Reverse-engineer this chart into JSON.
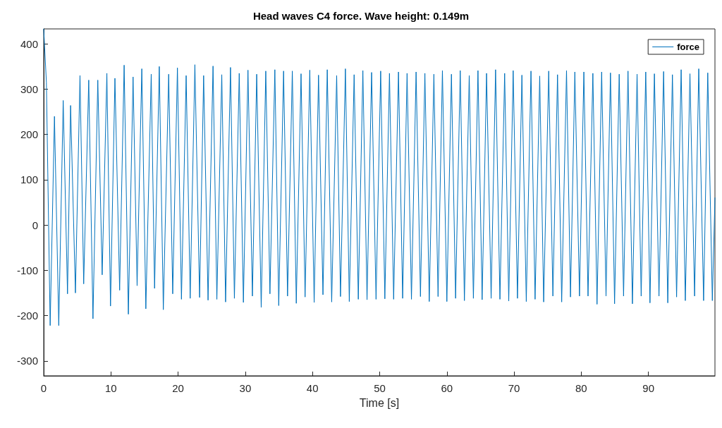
{
  "chart_data": {
    "type": "line",
    "title": "Head waves C4 force. Wave height: 0.149m",
    "xlabel": "Time [s]",
    "xlim": [
      0,
      99.9
    ],
    "xticks": [
      0,
      10,
      20,
      30,
      40,
      50,
      60,
      70,
      80,
      90
    ],
    "ylim": [
      -333,
      433
    ],
    "yticks": [
      -300,
      -200,
      -100,
      0,
      100,
      200,
      300,
      400
    ],
    "grid": false,
    "legend": "top right",
    "marker": "none",
    "line_style": "solid",
    "series": [
      {
        "name": "force",
        "color": "#0072bd",
        "x": [
          0,
          0.4,
          0.96,
          1.6,
          2.24,
          2.9,
          3.54,
          4.0,
          4.72,
          5.4,
          5.95,
          6.7,
          7.33,
          8.05,
          8.7,
          9.4,
          9.94,
          10.6,
          11.3,
          11.97,
          12.6,
          13.3,
          13.9,
          14.6,
          15.2,
          16.0,
          16.5,
          17.2,
          17.8,
          18.6,
          19.2,
          19.9,
          20.5,
          21.2,
          21.8,
          22.5,
          23.2,
          23.8,
          24.46,
          25.2,
          25.77,
          26.5,
          27.07,
          27.8,
          28.38,
          29.1,
          29.72,
          30.4,
          31.06,
          31.7,
          32.37,
          33.05,
          33.67,
          34.4,
          34.98,
          35.7,
          36.29,
          37.0,
          37.59,
          38.3,
          38.9,
          39.6,
          40.25,
          40.9,
          41.56,
          42.2,
          42.86,
          43.6,
          44.17,
          44.9,
          45.48,
          46.2,
          46.82,
          47.5,
          48.12,
          48.8,
          49.46,
          50.15,
          50.77,
          51.46,
          52.08,
          52.8,
          53.42,
          54.08,
          54.73,
          55.42,
          56.07,
          56.73,
          57.38,
          58.07,
          58.69,
          59.34,
          60,
          60.68,
          61.3,
          61.99,
          62.61,
          63.33,
          63.95,
          64.63,
          65.25,
          65.91,
          66.59,
          67.25,
          67.9,
          68.6,
          69.21,
          69.87,
          70.51,
          71.17,
          71.82,
          72.52,
          73.13,
          73.82,
          74.41,
          75.16,
          75.78,
          76.47,
          77.09,
          77.81,
          78.4,
          79.05,
          79.74,
          80.39,
          81.01,
          81.73,
          82.35,
          83.04,
          83.69,
          84.35,
          84.96,
          85.65,
          86.3,
          86.96,
          87.62,
          88.31,
          88.92,
          89.6,
          90.23,
          90.89,
          91.57,
          92.26,
          92.88,
          93.57,
          94.19,
          94.87,
          95.49,
          96.18,
          96.87,
          97.49,
          98.21,
          98.83,
          99.51,
          99.9
        ],
        "values": [
          433,
          315,
          -222,
          240,
          -222,
          275,
          -152,
          264,
          -150,
          330,
          -130,
          320,
          -207,
          320,
          -110,
          335,
          -179,
          324,
          -144,
          353,
          -197,
          327,
          -134,
          345,
          -185,
          333,
          -140,
          350,
          -187,
          333,
          -152,
          347,
          -164,
          330,
          -162,
          354,
          -160,
          330,
          -166,
          351,
          -164,
          332,
          -170,
          348,
          -162,
          335,
          -171,
          342,
          -157,
          333,
          -182,
          340,
          -152,
          343,
          -178,
          340,
          -157,
          340,
          -173,
          334,
          -159,
          342,
          -171,
          331,
          -154,
          343,
          -170,
          330,
          -158,
          345,
          -169,
          332,
          -164,
          341,
          -165,
          337,
          -164,
          340,
          -163,
          335,
          -164,
          338,
          -162,
          335,
          -164,
          338,
          -158,
          335,
          -169,
          333,
          -158,
          341,
          -169,
          333,
          -162,
          341,
          -167,
          330,
          -162,
          341,
          -165,
          335,
          -162,
          343,
          -164,
          335,
          -168,
          341,
          -162,
          331,
          -169,
          340,
          -164,
          329,
          -170,
          340,
          -157,
          332,
          -170,
          341,
          -159,
          338,
          -157,
          338,
          -157,
          335,
          -175,
          338,
          -157,
          336,
          -174,
          333,
          -157,
          340,
          -174,
          333,
          -157,
          338,
          -172,
          334,
          -157,
          339,
          -172,
          332,
          -159,
          343,
          -167,
          334,
          -157,
          345,
          -167,
          336,
          -167,
          60
        ]
      }
    ]
  }
}
